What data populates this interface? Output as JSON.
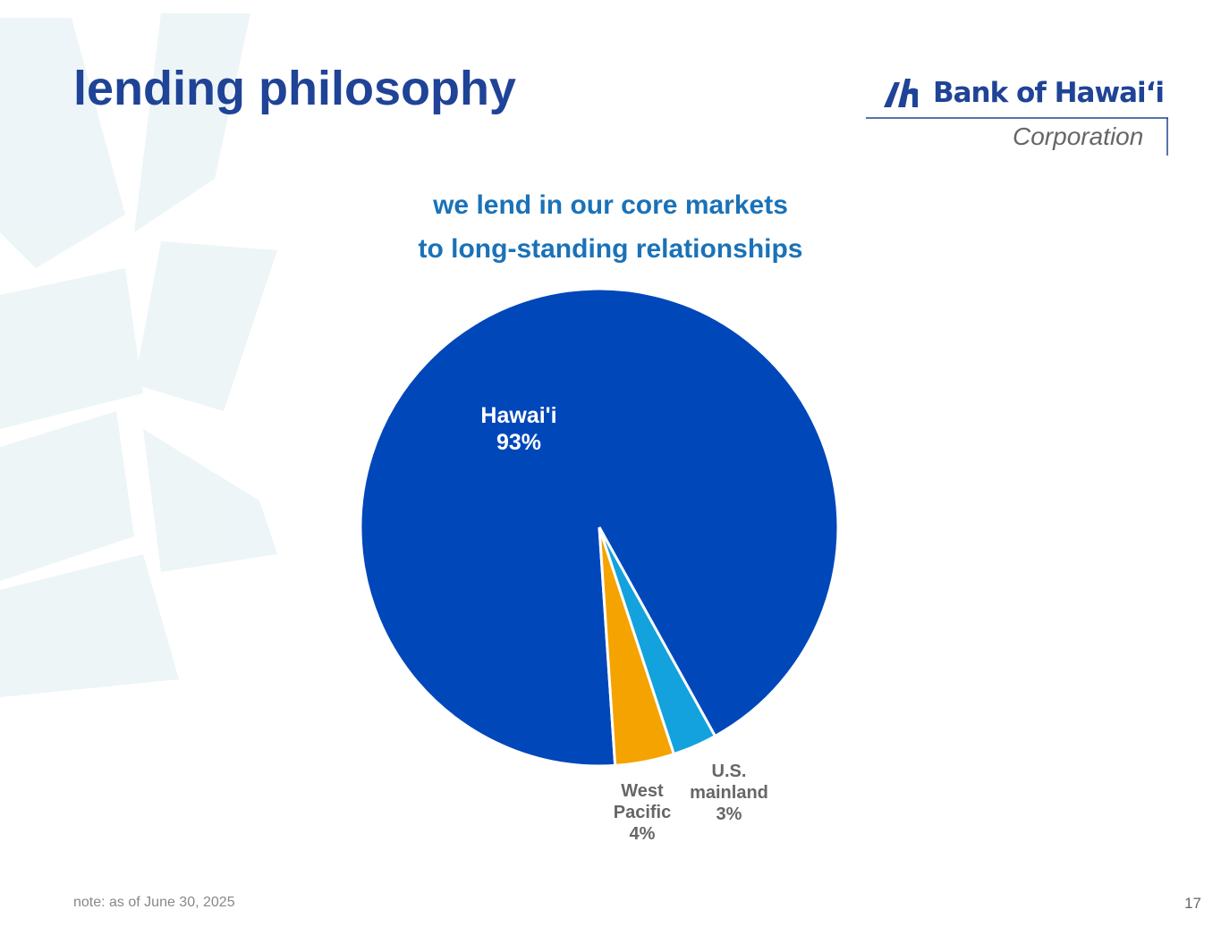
{
  "header": {
    "title": "lending philosophy",
    "logo": {
      "name": "Bank of Hawaiʻi",
      "subtitle": "Corporation"
    }
  },
  "chart_data": {
    "type": "pie",
    "title": [
      "we lend in our core markets",
      "to long-standing relationships"
    ],
    "categories": [
      "Hawai'i",
      "West Pacific",
      "U.S. mainland"
    ],
    "values": [
      93,
      4,
      3
    ],
    "value_labels": [
      "93%",
      "4%",
      "3%"
    ],
    "colors": [
      "#0047ba",
      "#f5a300",
      "#13a2dd"
    ]
  },
  "footer": {
    "note": "note: as of June 30, 2025",
    "page": "17"
  }
}
